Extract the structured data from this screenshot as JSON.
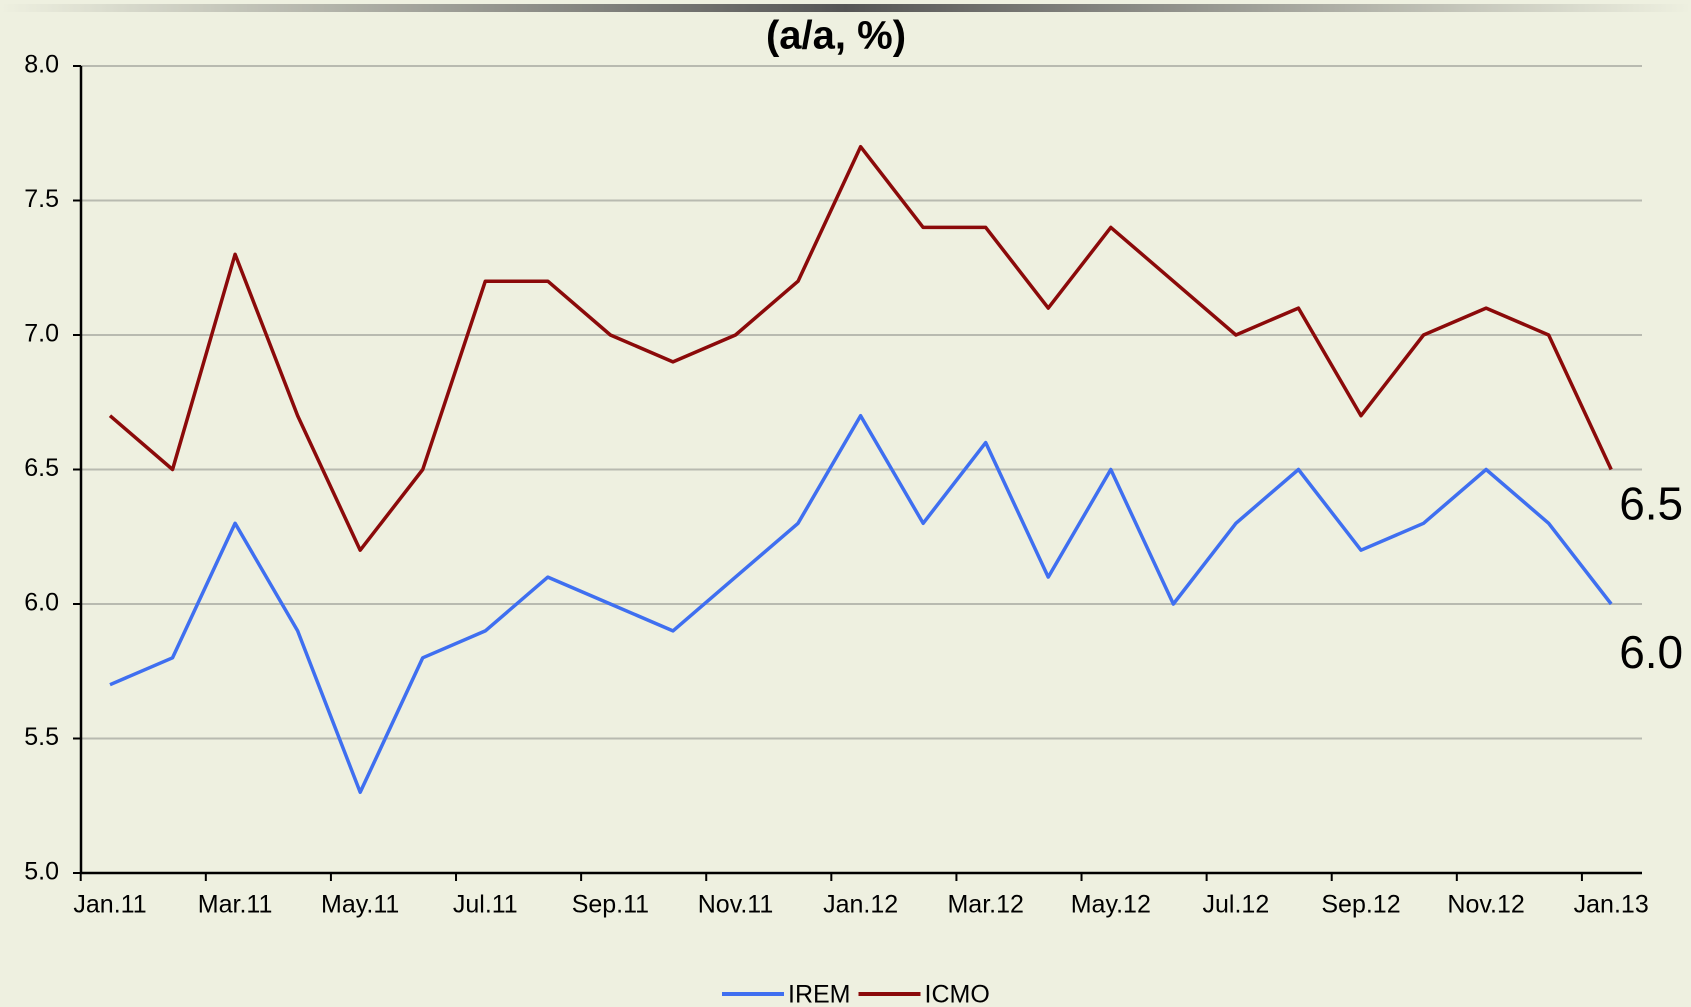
{
  "chart_data": {
    "type": "line",
    "title": "(a/a, %)",
    "categories": [
      "Jan.11",
      null,
      "Mar.11",
      null,
      "May.11",
      null,
      "Jul.11",
      null,
      "Sep.11",
      null,
      "Nov.11",
      null,
      "Jan.12",
      null,
      "Mar.12",
      null,
      "May.12",
      null,
      "Jul.12",
      null,
      "Sep.12",
      null,
      "Nov.12",
      null,
      "Jan.13"
    ],
    "series": [
      {
        "name": "IREM",
        "color": "#3f6ff0",
        "values": [
          5.7,
          5.8,
          6.3,
          5.9,
          5.3,
          5.8,
          5.9,
          6.1,
          6.0,
          5.9,
          6.1,
          6.3,
          6.7,
          6.3,
          6.6,
          6.1,
          6.5,
          6.0,
          6.3,
          6.5,
          6.2,
          6.3,
          6.5,
          6.3,
          6.0
        ],
        "value_labels": [
          null,
          null,
          null,
          null,
          null,
          null,
          null,
          null,
          null,
          null,
          null,
          null,
          null,
          null,
          null,
          null,
          null,
          null,
          null,
          null,
          null,
          null,
          null,
          null,
          "6.0"
        ]
      },
      {
        "name": "ICMO",
        "color": "#8b0a0a",
        "values": [
          6.7,
          6.5,
          7.3,
          6.7,
          6.2,
          6.5,
          7.2,
          7.2,
          7.0,
          6.9,
          7.0,
          7.2,
          7.7,
          7.4,
          7.4,
          7.1,
          7.4,
          7.2,
          7.0,
          7.1,
          6.7,
          7.0,
          7.1,
          7.0,
          6.5
        ],
        "value_labels": [
          null,
          null,
          null,
          null,
          null,
          null,
          null,
          null,
          null,
          null,
          null,
          null,
          null,
          null,
          null,
          null,
          null,
          null,
          null,
          null,
          null,
          null,
          null,
          null,
          "6.5"
        ]
      }
    ],
    "ylim": [
      5.0,
      8.0
    ],
    "yticks": [
      {
        "value": 5.0,
        "label": "5.0"
      },
      5.5,
      {
        "value": 6.0,
        "label": "6.0"
      },
      6.5,
      {
        "value": 7.0,
        "label": "7.0"
      },
      7.5,
      {
        "value": 8.0,
        "label": "8.0"
      }
    ],
    "grid": true,
    "legend": "bottom"
  }
}
